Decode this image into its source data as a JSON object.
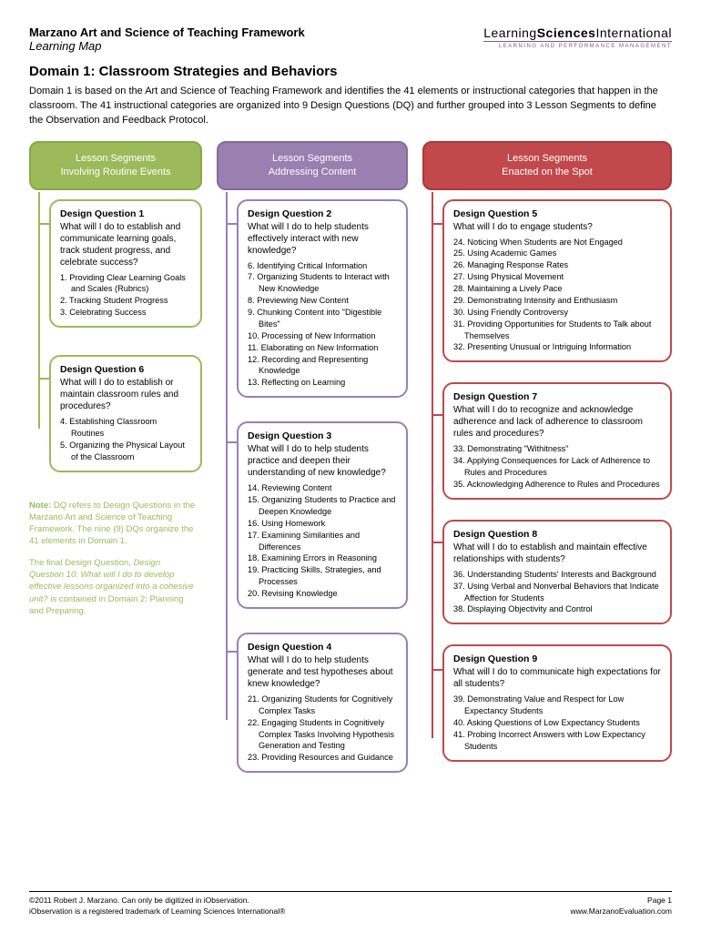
{
  "header": {
    "title": "Marzano Art and Science of Teaching Framework",
    "subtitle": "Learning Map"
  },
  "logo": {
    "part1": "Learning",
    "part2": "Sciences",
    "part3": "International",
    "tagline": "LEARNING AND PERFORMANCE MANAGEMENT"
  },
  "domain": {
    "title": "Domain 1: Classroom Strategies and Behaviors",
    "desc": "Domain 1 is based on the Art and Science of Teaching Framework and identifies the 41 elements or instructional categories that happen in the classroom. The 41 instructional categories are organized into 9 Design Questions (DQ) and further grouped into 3 Lesson Segments to define the Observation and Feedback Protocol."
  },
  "segments": {
    "s1": {
      "line1": "Lesson Segments",
      "line2": "Involving Routine Events",
      "color": "#9cba5a"
    },
    "s2": {
      "line1": "Lesson Segments",
      "line2": "Addressing Content",
      "color": "#9a7fb1"
    },
    "s3": {
      "line1": "Lesson Segments",
      "line2": "Enacted on the Spot",
      "color": "#c1484b"
    }
  },
  "dq1": {
    "title": "Design Question 1",
    "q": "What will I do to establish and communicate learning goals, track student progress, and celebrate success?",
    "items": [
      "1. Providing Clear Learning Goals and Scales (Rubrics)",
      "2. Tracking Student Progress",
      "3. Celebrating Success"
    ]
  },
  "dq6": {
    "title": "Design Question 6",
    "q": "What will I do to establish or maintain classroom rules and procedures?",
    "items": [
      "4. Establishing Classroom Routines",
      "5. Organizing the Physical Layout of the Classroom"
    ]
  },
  "dq2": {
    "title": "Design Question 2",
    "q": "What will I do to help students effectively interact with new knowledge?",
    "items": [
      "6. Identifying Critical Information",
      "7. Organizing Students to Interact with New Knowledge",
      "8. Previewing New Content",
      "9. Chunking Content into \"Digestible Bites\"",
      "10. Processing of New Information",
      "11. Elaborating on New Information",
      "12. Recording and Representing Knowledge",
      "13. Reflecting on Learning"
    ]
  },
  "dq3": {
    "title": "Design Question 3",
    "q": "What will I do to help students practice and deepen their understanding of new knowledge?",
    "items": [
      "14. Reviewing Content",
      "15. Organizing Students to Practice and Deepen Knowledge",
      "16. Using Homework",
      "17. Examining Similarities and Differences",
      "18. Examining Errors in Reasoning",
      "19. Practicing Skills, Strategies, and Processes",
      "20. Revising Knowledge"
    ]
  },
  "dq4": {
    "title": "Design Question 4",
    "q": "What will I do to help students generate and test hypotheses about knew knowledge?",
    "items": [
      "21. Organizing Students for Cognitively Complex Tasks",
      "22. Engaging Students in Cognitively Complex Tasks Involving Hypothesis Generation and Testing",
      "23. Providing Resources and Guidance"
    ]
  },
  "dq5": {
    "title": "Design Question 5",
    "q": "What will I do to engage students?",
    "items": [
      "24. Noticing When Students are Not Engaged",
      "25. Using Academic Games",
      "26. Managing Response Rates",
      "27. Using Physical Movement",
      "28. Maintaining a Lively Pace",
      "29. Demonstrating Intensity and Enthusiasm",
      "30. Using Friendly Controversy",
      "31. Providing Opportunities for Students to Talk about Themselves",
      "32. Presenting Unusual or Intriguing Information"
    ]
  },
  "dq7": {
    "title": "Design Question 7",
    "q": "What will I do to recognize and acknowledge adherence and lack of adherence to classroom rules and procedures?",
    "items": [
      "33. Demonstrating \"Withitness\"",
      "34. Applying Consequences for Lack of Adherence to Rules and Procedures",
      "35. Acknowledging Adherence to Rules and Procedures"
    ]
  },
  "dq8": {
    "title": "Design Question 8",
    "q": "What will I do to establish and maintain effective relationships with students?",
    "items": [
      "36. Understanding Students' Interests and Background",
      "37. Using Verbal and Nonverbal Behaviors that Indicate Affection for Students",
      "38. Displaying Objectivity and Control"
    ]
  },
  "dq9": {
    "title": "Design Question 9",
    "q": "What will I do to communicate high expectations for all students?",
    "items": [
      "39. Demonstrating Value and Respect for Low Expectancy Students",
      "40. Asking Questions of Low Expectancy Students",
      "41. Probing Incorrect Answers with Low Expectancy Students"
    ]
  },
  "note": {
    "label": "Note:",
    "p1": " DQ refers to Design Questions in the Marzano Art and Science of Teaching Framework. The nine (9) DQs organize the 41 elements in Domain 1.",
    "p2a": "The final Design Question, ",
    "p2b": "Design Question 10: What will I do to develop effective lessons organized into a cohesive unit?",
    "p2c": " is contained in Domain 2: Planning and Preparing."
  },
  "footer": {
    "l1": "©2011 Robert J. Marzano. Can only be digitized in iObservation.",
    "l2": "iObservation is a registered trademark of Learning Sciences International®",
    "r1": "Page 1",
    "r2": "www.MarzanoEvaluation.com"
  }
}
